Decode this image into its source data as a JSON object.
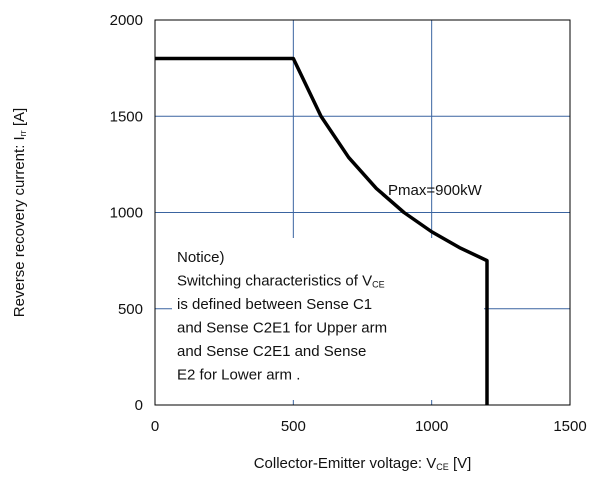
{
  "chart_data": {
    "type": "line",
    "xlabel": {
      "text": "Collector-Emitter voltage: V",
      "sub": "CE",
      "suffix": " [V]"
    },
    "ylabel": {
      "text": "Reverse recovery current: I",
      "sub": "rr",
      "suffix": " [A]"
    },
    "x": [
      0,
      500,
      600,
      700,
      800,
      900,
      1000,
      1100,
      1200,
      1200
    ],
    "series": [
      {
        "color": "#000000",
        "values": [
          1800,
          1800,
          1500,
          1286,
          1125,
          1000,
          900,
          818,
          750,
          0
        ]
      }
    ],
    "xlim": [
      0,
      1500
    ],
    "xticks": [
      0,
      500,
      1000,
      1500
    ],
    "ylim": [
      0,
      2000
    ],
    "yticks": [
      0,
      500,
      1000,
      1500,
      2000
    ],
    "grid": true,
    "grid_color": "#3a64a0",
    "annotation": "Pmax=900kW",
    "notice": [
      [
        "Notice)"
      ],
      [
        "Switching characteristics of V",
        "CE"
      ],
      [
        "is defined between Sense C1"
      ],
      [
        "and Sense C2E1 for Upper arm"
      ],
      [
        "and Sense C2E1 and Sense"
      ],
      [
        "E2 for Lower arm ."
      ]
    ]
  }
}
